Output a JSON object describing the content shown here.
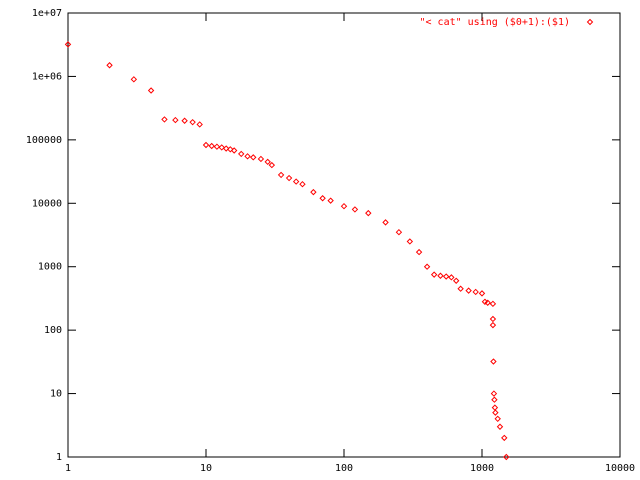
{
  "chart_data": {
    "type": "scatter",
    "xlog": true,
    "ylog": true,
    "xlim": [
      1,
      10000
    ],
    "ylim": [
      1,
      10000000
    ],
    "xticks": [
      1,
      10,
      100,
      1000,
      10000
    ],
    "yticks": [
      1,
      10,
      100,
      1000,
      10000,
      100000,
      {
        "value": 1000000,
        "label": "1e+06"
      },
      {
        "value": 10000000,
        "label": "1e+07"
      }
    ],
    "legend": "top-right",
    "x": [
      1,
      2,
      3,
      4,
      5,
      6,
      7,
      8,
      9,
      10,
      11,
      12,
      13,
      14,
      15,
      16,
      18,
      20,
      22,
      25,
      28,
      30,
      35,
      40,
      45,
      50,
      60,
      70,
      80,
      100,
      120,
      150,
      200,
      250,
      300,
      350,
      400,
      450,
      500,
      550,
      600,
      650,
      700,
      800,
      900,
      1000,
      1050,
      1100,
      1200,
      1200,
      1200,
      1210,
      1220,
      1230,
      1240,
      1250,
      1300,
      1350,
      1450,
      1500
    ],
    "series": [
      {
        "name": "\"< cat\" using ($0+1):($1)",
        "color": "#ff0000",
        "values": [
          3200000,
          1500000,
          900000,
          600000,
          210000,
          205000,
          200000,
          190000,
          175000,
          83000,
          80000,
          78000,
          76000,
          73000,
          71000,
          68000,
          60000,
          55000,
          53000,
          50000,
          45000,
          40000,
          28000,
          25000,
          22000,
          20000,
          15000,
          12000,
          11000,
          9000,
          8000,
          7000,
          5000,
          3500,
          2500,
          1700,
          1000,
          750,
          720,
          700,
          680,
          600,
          450,
          420,
          400,
          380,
          280,
          270,
          260,
          150,
          120,
          32,
          10,
          8,
          6,
          5,
          4,
          3,
          2,
          1
        ]
      }
    ]
  }
}
